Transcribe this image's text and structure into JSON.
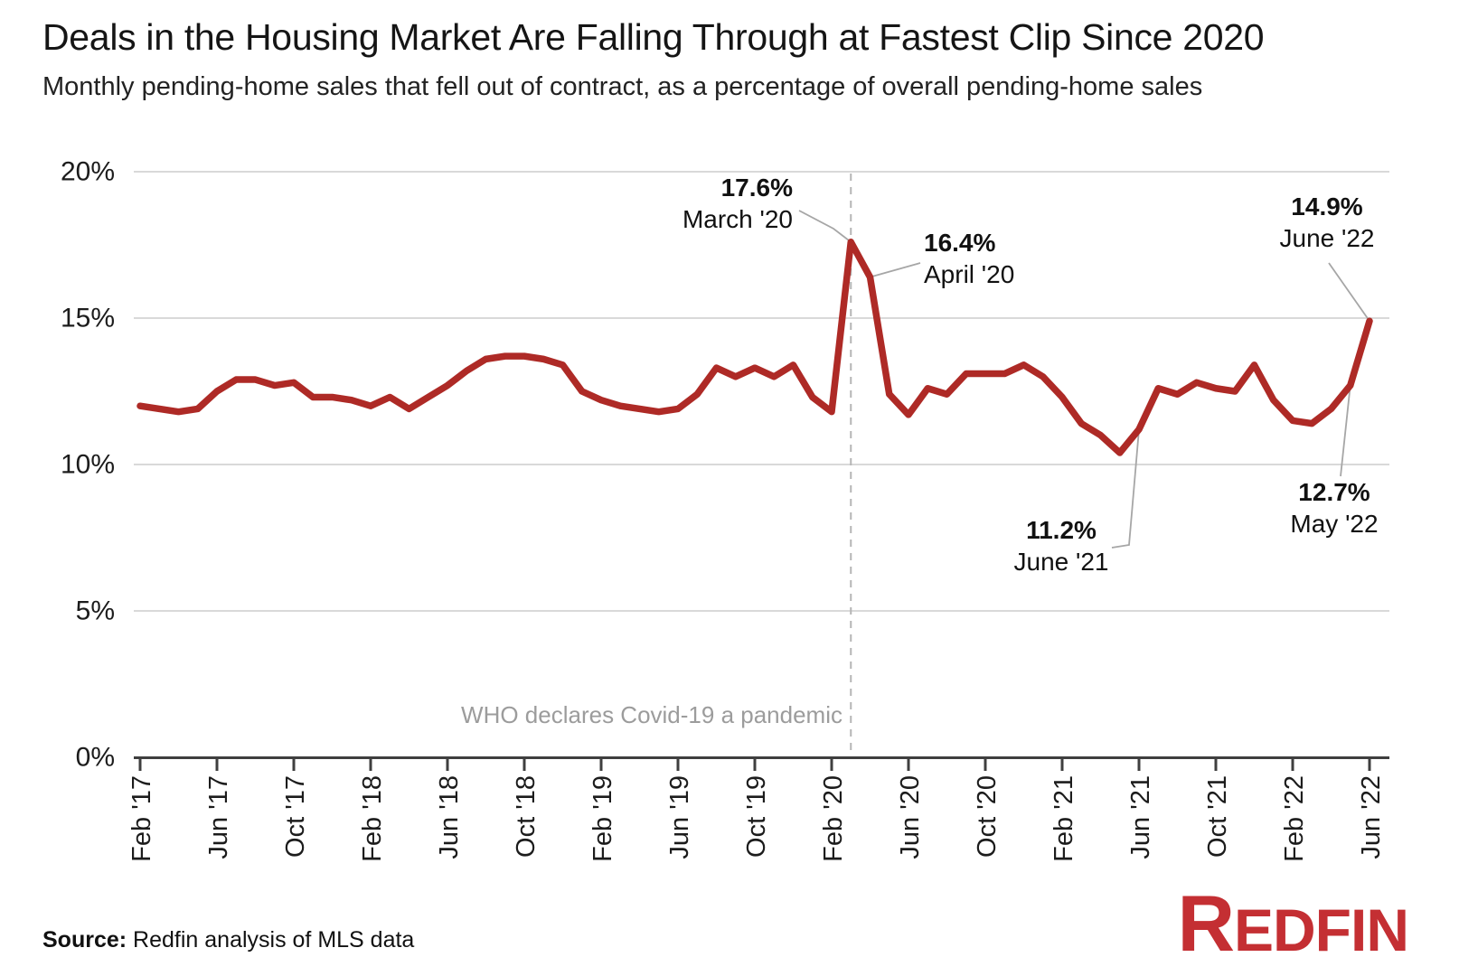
{
  "header": {
    "title": "Deals in the Housing Market Are Falling Through at Fastest Clip Since 2020",
    "subtitle": "Monthly pending-home sales that fell out of contract, as a percentage of overall pending-home sales"
  },
  "chart_data": {
    "type": "line",
    "series_name": "Share of pending-home sales that fell out of contract",
    "x": [
      "Feb '17",
      "Mar '17",
      "Apr '17",
      "May '17",
      "Jun '17",
      "Jul '17",
      "Aug '17",
      "Sep '17",
      "Oct '17",
      "Nov '17",
      "Dec '17",
      "Jan '18",
      "Feb '18",
      "Mar '18",
      "Apr '18",
      "May '18",
      "Jun '18",
      "Jul '18",
      "Aug '18",
      "Sep '18",
      "Oct '18",
      "Nov '18",
      "Dec '18",
      "Jan '19",
      "Feb '19",
      "Mar '19",
      "Apr '19",
      "May '19",
      "Jun '19",
      "Jul '19",
      "Aug '19",
      "Sep '19",
      "Oct '19",
      "Nov '19",
      "Dec '19",
      "Jan '20",
      "Feb '20",
      "Mar '20",
      "Apr '20",
      "May '20",
      "Jun '20",
      "Jul '20",
      "Aug '20",
      "Sep '20",
      "Oct '20",
      "Nov '20",
      "Dec '20",
      "Jan '21",
      "Feb '21",
      "Mar '21",
      "Apr '21",
      "May '21",
      "Jun '21",
      "Jul '21",
      "Aug '21",
      "Sep '21",
      "Oct '21",
      "Nov '21",
      "Dec '21",
      "Jan '22",
      "Feb '22",
      "Mar '22",
      "Apr '22",
      "May '22",
      "Jun '22"
    ],
    "values": [
      12.0,
      11.9,
      11.8,
      11.9,
      12.5,
      12.9,
      12.9,
      12.7,
      12.8,
      12.3,
      12.3,
      12.2,
      12.0,
      12.3,
      11.9,
      12.3,
      12.7,
      13.2,
      13.6,
      13.7,
      13.7,
      13.6,
      13.4,
      12.5,
      12.2,
      12.0,
      11.9,
      11.8,
      11.9,
      12.4,
      13.3,
      13.0,
      13.3,
      13.0,
      13.4,
      12.3,
      11.8,
      17.6,
      16.4,
      12.4,
      11.7,
      12.6,
      12.4,
      13.1,
      13.1,
      13.1,
      13.4,
      13.0,
      12.3,
      11.4,
      11.0,
      10.4,
      11.2,
      12.6,
      12.4,
      12.8,
      12.6,
      12.5,
      13.4,
      12.2,
      11.5,
      11.4,
      11.9,
      12.7,
      14.9
    ],
    "x_tick_labels": [
      "Feb '17",
      "Jun '17",
      "Oct '17",
      "Feb '18",
      "Jun '18",
      "Oct '18",
      "Feb '19",
      "Jun '19",
      "Oct '19",
      "Feb '20",
      "Jun '20",
      "Oct '20",
      "Feb '21",
      "Jun '21",
      "Oct '21",
      "Feb '22",
      "Jun '22"
    ],
    "y_tick_labels": [
      "0%",
      "5%",
      "10%",
      "15%",
      "20%"
    ],
    "y_tick_values": [
      0,
      5,
      10,
      15,
      20
    ],
    "ylim": [
      0,
      20
    ],
    "grid": "horizontal-only",
    "line_color": "#ae2a26",
    "annotations": [
      {
        "value": "17.6%",
        "date": "March '20",
        "month_index": 37
      },
      {
        "value": "16.4%",
        "date": "April '20",
        "month_index": 38
      },
      {
        "value": "14.9%",
        "date": "June '22",
        "month_index": 64
      },
      {
        "value": "12.7%",
        "date": "May '22",
        "month_index": 63
      },
      {
        "value": "11.2%",
        "date": "June '21",
        "month_index": 52
      }
    ],
    "event_line": {
      "label": "WHO declares Covid-19 a pandemic",
      "month_index": 37
    }
  },
  "footer": {
    "source_label": "Source:",
    "source_text": "Redfin analysis of MLS data",
    "logo_initial": "R",
    "logo_rest": "EDFIN"
  }
}
